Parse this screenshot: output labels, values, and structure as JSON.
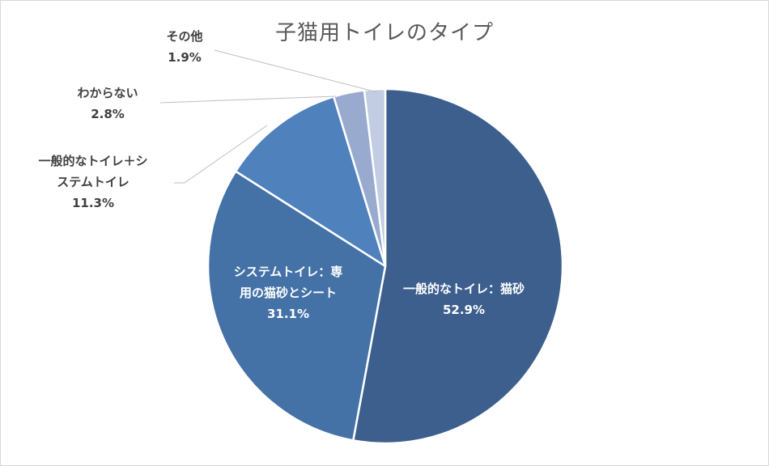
{
  "chart_data": {
    "type": "pie",
    "title": "子猫用トイレのタイプ",
    "slices": [
      {
        "label_lines": [
          "一般的なトイレ：猫砂"
        ],
        "value": 52.9,
        "value_label": "52.9%",
        "color": "#3d5f8e"
      },
      {
        "label_lines": [
          "システムトイレ：専",
          "用の猫砂とシート"
        ],
        "value": 31.1,
        "value_label": "31.1%",
        "color": "#4572a6"
      },
      {
        "label_lines": [
          "一般的なトイレ＋シ",
          "ステムトイレ"
        ],
        "value": 11.3,
        "value_label": "11.3%",
        "color": "#4f81bd"
      },
      {
        "label_lines": [
          "わからない"
        ],
        "value": 2.8,
        "value_label": "2.8%",
        "color": "#98abcf"
      },
      {
        "label_lines": [
          "その他"
        ],
        "value": 1.9,
        "value_label": "1.9%",
        "color": "#c2cde3"
      }
    ],
    "start_angle_deg": 0,
    "direction": "clockwise",
    "legend": "none"
  }
}
